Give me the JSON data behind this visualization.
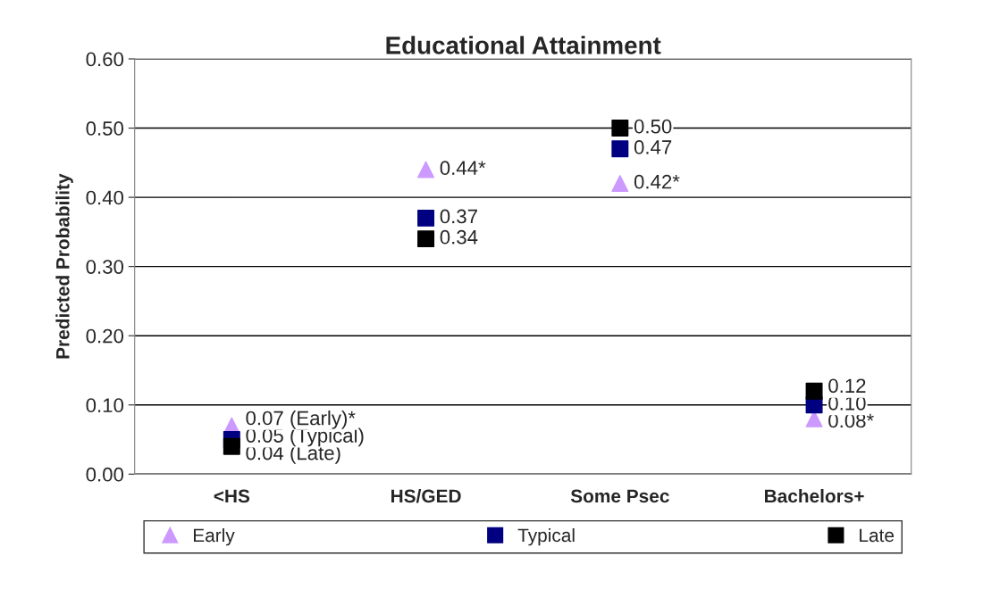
{
  "chart_data": {
    "type": "scatter",
    "title": "Educational Attainment",
    "ylabel": "Predicted Probability",
    "categories": [
      "<HS",
      "HS/GED",
      "Some Psec",
      "Bachelors+"
    ],
    "series": [
      {
        "name": "Early",
        "color": "#cc99ff",
        "marker": "triangle",
        "values": [
          0.07,
          0.44,
          0.42,
          0.08
        ],
        "value_labels": [
          "0.07 (Early)*",
          "0.44*",
          "0.42*",
          "0.08*"
        ]
      },
      {
        "name": "Typical",
        "color": "#000080",
        "marker": "square",
        "values": [
          0.05,
          0.37,
          0.47,
          0.1
        ],
        "value_labels": [
          "0.05 (Typical)",
          "0.37",
          "0.47",
          "0.10"
        ]
      },
      {
        "name": "Late",
        "color": "#000000",
        "marker": "square",
        "values": [
          0.04,
          0.34,
          0.5,
          0.12
        ],
        "value_labels": [
          "0.04 (Late)",
          "0.34",
          "0.50",
          "0.12"
        ]
      }
    ],
    "ylim": [
      0,
      0.6
    ],
    "yticks": [
      {
        "value": 0,
        "label": "0.00"
      },
      {
        "value": 0.1,
        "label": "0.10"
      },
      {
        "value": 0.2,
        "label": "0.20"
      },
      {
        "value": 0.3,
        "label": "0.30"
      },
      {
        "value": 0.4,
        "label": "0.40"
      },
      {
        "value": 0.5,
        "label": "0.50"
      },
      {
        "value": 0.6,
        "label": "0.60"
      }
    ],
    "grid": "y",
    "legend": "bottom"
  }
}
